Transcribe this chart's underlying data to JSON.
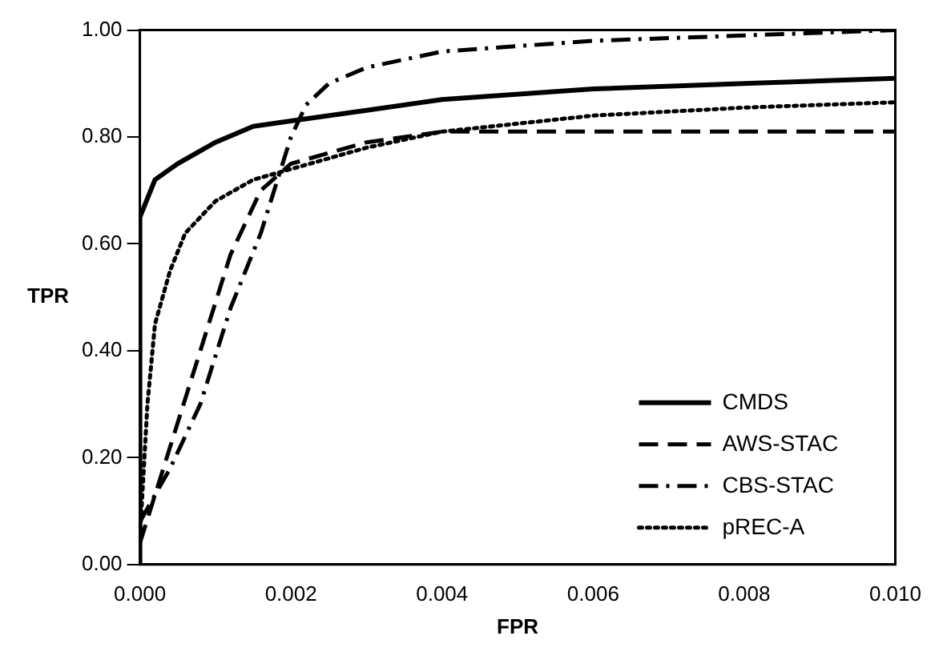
{
  "chart_data": {
    "type": "line",
    "xlabel": "FPR",
    "ylabel": "TPR",
    "xlim": [
      0,
      0.01
    ],
    "ylim": [
      0,
      1
    ],
    "xticks": [
      {
        "value": 0,
        "label": "0.000"
      },
      {
        "value": 0.002,
        "label": "0.002"
      },
      {
        "value": 0.004,
        "label": "0.004"
      },
      {
        "value": 0.006,
        "label": "0.006"
      },
      {
        "value": 0.008,
        "label": "0.008"
      },
      {
        "value": 0.01,
        "label": "0.010"
      }
    ],
    "yticks": [
      {
        "value": 0,
        "label": "0.00"
      },
      {
        "value": 0.2,
        "label": "0.20"
      },
      {
        "value": 0.4,
        "label": "0.40"
      },
      {
        "value": 0.6,
        "label": "0.60"
      },
      {
        "value": 0.8,
        "label": "0.80"
      },
      {
        "value": 1,
        "label": "1.00"
      }
    ],
    "grid": false,
    "legend": "bottom right",
    "marker": "none",
    "series": [
      {
        "name": "CMDS",
        "color": "#000000",
        "line_style": "solid",
        "x": [
          0,
          0,
          0.0002,
          0.0005,
          0.001,
          0.0015,
          0.002,
          0.003,
          0.004,
          0.006,
          0.008,
          0.01
        ],
        "values": [
          0,
          0.65,
          0.72,
          0.75,
          0.79,
          0.82,
          0.83,
          0.85,
          0.87,
          0.89,
          0.9,
          0.91
        ]
      },
      {
        "name": "AWS-STAC",
        "color": "#000000",
        "line_style": "dashed",
        "x": [
          0,
          0.0004,
          0.0008,
          0.0012,
          0.0016,
          0.002,
          0.003,
          0.004,
          0.006,
          0.008,
          0.01
        ],
        "values": [
          0.04,
          0.22,
          0.4,
          0.58,
          0.7,
          0.75,
          0.79,
          0.81,
          0.81,
          0.81,
          0.81
        ]
      },
      {
        "name": "CBS-STAC",
        "color": "#000000",
        "line_style": "dashdot",
        "x": [
          0,
          0.0004,
          0.0008,
          0.0012,
          0.0016,
          0.002,
          0.0022,
          0.0025,
          0.003,
          0.004,
          0.006,
          0.008,
          0.01
        ],
        "values": [
          0.08,
          0.18,
          0.3,
          0.48,
          0.62,
          0.8,
          0.86,
          0.9,
          0.93,
          0.96,
          0.98,
          0.99,
          1
        ]
      },
      {
        "name": "pREC-A",
        "color": "#000000",
        "line_style": "dotted",
        "x": [
          0,
          0.0001,
          0.0002,
          0.0004,
          0.0006,
          0.001,
          0.0015,
          0.002,
          0.003,
          0.004,
          0.006,
          0.008,
          0.01
        ],
        "values": [
          0.05,
          0.3,
          0.45,
          0.55,
          0.62,
          0.68,
          0.72,
          0.74,
          0.78,
          0.81,
          0.84,
          0.855,
          0.865
        ]
      }
    ]
  }
}
